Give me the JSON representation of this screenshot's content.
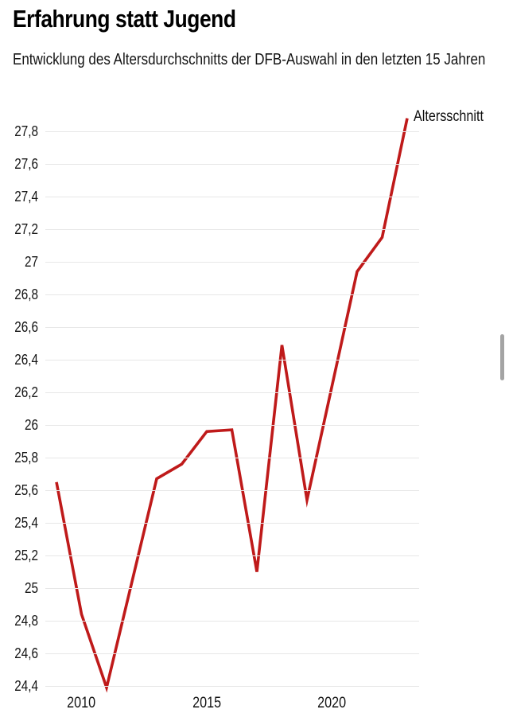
{
  "page": {
    "title": "Erfahrung statt Jugend",
    "subtitle": "Entwicklung des Altersdurchschnitts der DFB-Auswahl in den letzten 15 Jahren"
  },
  "colors": {
    "line": "#bf1a1a",
    "grid": "#e7e7e7",
    "text": "#141414",
    "scrollbar": "#a4a4a4"
  },
  "chart_data": {
    "type": "line",
    "title": "Erfahrung statt Jugend",
    "subtitle": "Entwicklung des Altersdurchschnitts der DFB-Auswahl in den letzten 15 Jahren",
    "xlabel": "",
    "ylabel": "",
    "xlim": [
      2009,
      2023
    ],
    "ylim": [
      24.4,
      27.9
    ],
    "grid": "horizontal-only",
    "legend_position": "end-of-line",
    "series": [
      {
        "name": "Altersschnitt",
        "x": [
          2009,
          2010,
          2011,
          2012,
          2013,
          2014,
          2015,
          2016,
          2017,
          2018,
          2019,
          2020,
          2021,
          2022,
          2023
        ],
        "values": [
          25.65,
          24.84,
          24.39,
          25.03,
          25.67,
          25.76,
          25.96,
          25.97,
          25.1,
          26.49,
          25.54,
          26.24,
          26.94,
          27.15,
          27.88
        ]
      }
    ],
    "y_ticks": [
      {
        "value": 27.8,
        "label": "27,8"
      },
      {
        "value": 27.6,
        "label": "27,6"
      },
      {
        "value": 27.4,
        "label": "27,4"
      },
      {
        "value": 27.2,
        "label": "27,2"
      },
      {
        "value": 27.0,
        "label": "27"
      },
      {
        "value": 26.8,
        "label": "26,8"
      },
      {
        "value": 26.6,
        "label": "26,6"
      },
      {
        "value": 26.4,
        "label": "26,4"
      },
      {
        "value": 26.2,
        "label": "26,2"
      },
      {
        "value": 26.0,
        "label": "26"
      },
      {
        "value": 25.8,
        "label": "25,8"
      },
      {
        "value": 25.6,
        "label": "25,6"
      },
      {
        "value": 25.4,
        "label": "25,4"
      },
      {
        "value": 25.2,
        "label": "25,2"
      },
      {
        "value": 25.0,
        "label": "25"
      },
      {
        "value": 24.8,
        "label": "24,8"
      },
      {
        "value": 24.6,
        "label": "24,6"
      },
      {
        "value": 24.4,
        "label": "24,4"
      }
    ],
    "x_ticks": [
      {
        "value": 2010,
        "label": "2010"
      },
      {
        "value": 2015,
        "label": "2015"
      },
      {
        "value": 2020,
        "label": "2020"
      }
    ]
  }
}
